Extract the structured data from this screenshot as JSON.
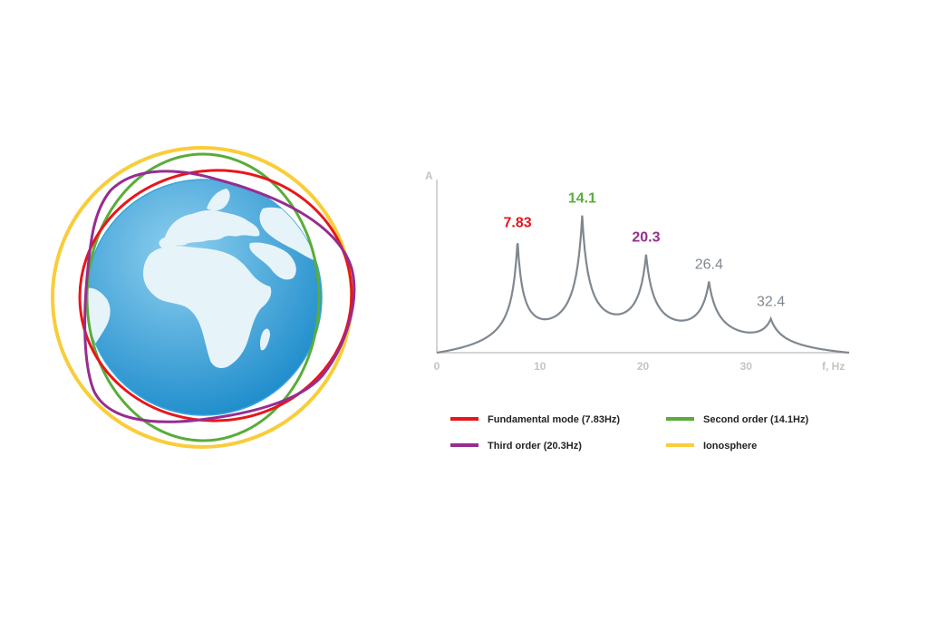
{
  "colors": {
    "fundamental": "#e8161b",
    "second": "#5aac3a",
    "third": "#962d8f",
    "ionosphere": "#f9cd3a",
    "ocean_light": "#8fd0ef",
    "ocean_dark": "#1d8ccb",
    "land": "#e6f4fa",
    "curve": "#7f8890",
    "axis": "#c6c6c6",
    "grey_label": "#7f8890"
  },
  "chart_data": {
    "type": "line",
    "ylabel": "A",
    "xlabel": "f, Hz",
    "xlim": [
      0,
      40
    ],
    "x_ticks": [
      "0",
      "10",
      "20",
      "30"
    ],
    "peaks": [
      {
        "freq": 7.83,
        "label": "7.83",
        "color_key": "fundamental",
        "bold": true
      },
      {
        "freq": 14.1,
        "label": "14.1",
        "color_key": "second",
        "bold": true
      },
      {
        "freq": 20.3,
        "label": "20.3",
        "color_key": "third",
        "bold": true
      },
      {
        "freq": 26.4,
        "label": "26.4",
        "color_key": "grey_label",
        "bold": false
      },
      {
        "freq": 32.4,
        "label": "32.4",
        "color_key": "grey_label",
        "bold": false
      }
    ],
    "relative_peak_heights": [
      0.74,
      0.88,
      0.59,
      0.43,
      0.2
    ],
    "legend": [
      {
        "label": "Fundamental mode (7.83Hz)",
        "color_key": "fundamental"
      },
      {
        "label": "Second order (14.1Hz)",
        "color_key": "second"
      },
      {
        "label": "Third order (20.3Hz)",
        "color_key": "third"
      },
      {
        "label": "Ionosphere",
        "color_key": "ionosphere"
      }
    ]
  }
}
